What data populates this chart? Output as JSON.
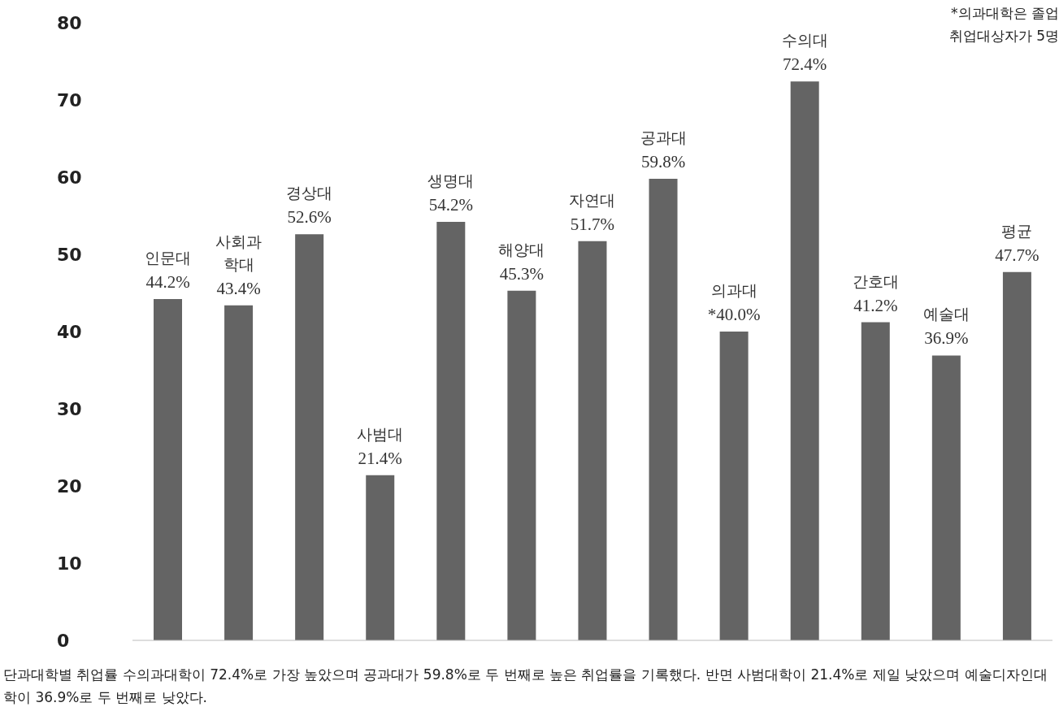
{
  "chart_data": {
    "type": "bar",
    "categories": [
      "인문대",
      "사회과학대",
      "경상대",
      "사범대",
      "생명대",
      "해양대",
      "자연대",
      "공과대",
      "의과대",
      "수의대",
      "간호대",
      "예술대",
      "평균"
    ],
    "values": [
      44.2,
      43.4,
      52.6,
      21.4,
      54.2,
      45.3,
      51.7,
      59.8,
      40.0,
      72.4,
      41.2,
      36.9,
      47.7
    ],
    "value_labels": [
      "44.2%",
      "43.4%",
      "52.6%",
      "21.4%",
      "54.2%",
      "45.3%",
      "51.7%",
      "59.8%",
      "*40.0%",
      "72.4%",
      "41.2%",
      "36.9%",
      "47.7%"
    ],
    "color": "#646464",
    "ylim": [
      0,
      80
    ],
    "yticks": [
      0,
      10,
      20,
      30,
      40,
      50,
      60,
      70,
      80
    ],
    "grid": false,
    "legend": false,
    "annotations": [
      "*의과대학은 졸업",
      "취업대상자가 5명",
      "단과대학별 취업률 수의과대학이 72.4%로 가장 높았으며 공과대가 59.8%로 두 번째로 높은 취업률을 기록했다. 반면 사범대학이 21.4%로 제일 낮았으며 예술디자인대학이 36.9%로 두 번째로 낮았다."
    ]
  }
}
